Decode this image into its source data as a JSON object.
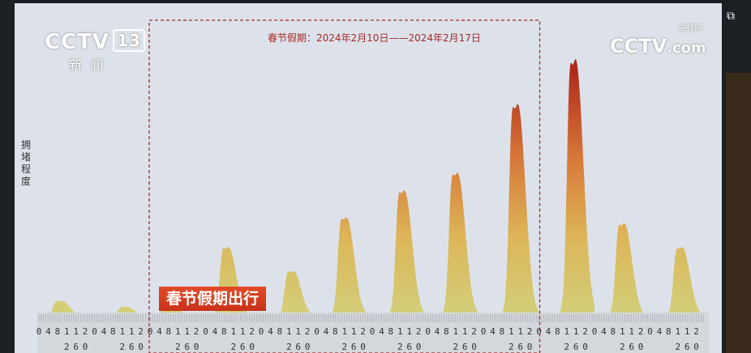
{
  "channel_logo": {
    "brand": "CCTV",
    "channel": "13",
    "subtitle": "新闻"
  },
  "site_logo": {
    "brand": "CCTV",
    "site": "央视网",
    "suffix": ".com"
  },
  "banner": "春节假期出行",
  "icon": "picture-in-picture-icon",
  "chart_data": {
    "type": "area",
    "title": "春节假期：2024年2月10日——2024年2月17日",
    "ylabel": "拥堵程度",
    "xlabel": "",
    "x_tick_labels": [
      "0",
      "4",
      "8",
      "12",
      "16",
      "20"
    ],
    "days": 12,
    "highlight_days": [
      2,
      9
    ],
    "daily_peak": [
      5,
      3,
      4,
      23,
      15,
      33,
      42,
      48,
      71,
      86,
      31,
      23
    ],
    "daily_peak_hour": [
      10,
      14,
      9,
      10,
      14,
      13,
      14,
      13,
      15,
      16,
      13,
      14
    ],
    "ylim": [
      0,
      100
    ],
    "grid": false,
    "colors": {
      "low": "#c9c46a",
      "mid": "#e0a850",
      "high": "#b3221a",
      "highlight_box": "#a52a2a",
      "background": "#dde2ea"
    }
  }
}
